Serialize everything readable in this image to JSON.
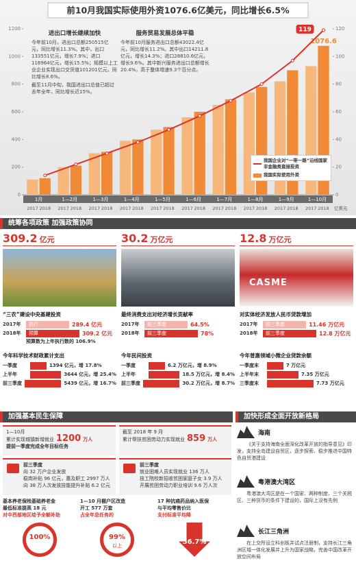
{
  "chart_data": {
    "type": "bar",
    "title": "前10月我国实际使用外资1076.6亿美元，同比增长6.5%",
    "categories": [
      "1月",
      "1—2月",
      "1—3月",
      "1—4月",
      "1—5月",
      "1—6月",
      "1—7月",
      "1—8月",
      "1—9月",
      "1—10月"
    ],
    "series": [
      {
        "name": "2017",
        "color": "#f7b77a",
        "values": [
          110,
          200,
          300,
          390,
          470,
          560,
          650,
          740,
          820,
          930
        ]
      },
      {
        "name": "2018",
        "color": "#f08a36",
        "values": [
          120,
          210,
          310,
          400,
          490,
          600,
          690,
          780,
          900,
          1076.6
        ]
      },
      {
        "name": "我国企业对“一带一路”沿线国家非金融类直接投资",
        "color": "#d9342b",
        "axis": "y2",
        "type": "line",
        "values": [
          14,
          22,
          30,
          38,
          47,
          57,
          68,
          80,
          97,
          119
        ]
      }
    ],
    "bar_legend": "我国实际使用外资",
    "unit": "亿美元",
    "ylim": [
      0,
      1200
    ],
    "yticks": [
      0,
      200,
      400,
      600,
      800,
      1000,
      1200
    ],
    "y2lim": [
      0,
      120
    ],
    "y2ticks": [
      0,
      20,
      40,
      60,
      80,
      100,
      120
    ],
    "grid": false,
    "notes": [
      {
        "title": "进出口增长继续加快",
        "text": "今年前10月，进出口总额250515亿元，同比增长11.3%。其中，出口133551亿元，增长7.9%；进口116964亿元，增长15.5%；规模以上工业企业实现出口交货值101201亿元，同比增长8.6%。",
        "text2": "截至11月中旬，我国进出口总值已超过去年全年，同比增长近15%。"
      },
      {
        "title": "服务贸易发展总体平稳",
        "text": "今年前10月服务进出口总额43022.4亿元，同比增长11.2%。其中出口14211.8亿元，增长14.3%；进口28810.6亿元，增长9.6%。其中新兴服务进出口总额增长20.4%，高于整体增速9.3个百分点。",
        "text2": ""
      }
    ]
  },
  "policy": {
    "header": "统筹各项政策  加强政策协同",
    "columns": [
      {
        "number": "309.2",
        "unit": "亿元",
        "t1": "“三农”建设中央基建投资",
        "r1": [
          {
            "label": "2017年",
            "tag": "执行",
            "value": "289.4 亿元"
          },
          {
            "label": "2018年",
            "tag": "预算",
            "value": "309.2 亿元"
          }
        ],
        "note": "预算数为上年执行数的 106.9%",
        "t2": "今年科学技术财政累计支出",
        "r2": [
          {
            "label": "一季度",
            "value": "1394 亿元，增 17.8%"
          },
          {
            "label": "上半年",
            "value": "3644 亿元，增 25.4%"
          },
          {
            "label": "前三季度",
            "value": "5439 亿元，增 16.7%"
          }
        ]
      },
      {
        "number": "30.2",
        "unit": "万亿元",
        "t1": "最终消费支出对经济增长贡献率",
        "r1": [
          {
            "label": "2017年",
            "tag": "前三季度",
            "value": "64.5%"
          },
          {
            "label": "2018年",
            "tag": "前三季度",
            "value": "78%"
          }
        ],
        "note": "",
        "t2": "今年民间投资",
        "r2": [
          {
            "label": "一季度",
            "value": "6.2 万亿元，增 8.9%"
          },
          {
            "label": "上半年",
            "value": "18.5 万亿元，增 8.4%"
          },
          {
            "label": "前三季度",
            "value": "30.2 万亿元，增 8.7%"
          }
        ]
      },
      {
        "number": "12.8",
        "unit": "万亿元",
        "sign": "CASME",
        "t1": "对实体经济发放人民币贷款增加",
        "r1": [
          {
            "label": "2017年",
            "tag": "前三季度",
            "value": "11.46 万亿元"
          },
          {
            "label": "2018年",
            "tag": "前三季度",
            "value": "12.8 万亿元"
          }
        ],
        "note": "",
        "t2": "今年普惠领域小微企业贷款余额",
        "r2": [
          {
            "label": "一季度末",
            "value": "7 万亿元"
          },
          {
            "label": "上半年末",
            "value": "7.35 万亿元"
          },
          {
            "label": "三季度末",
            "value": "7.73 万亿元"
          }
        ]
      }
    ]
  },
  "livelihood": {
    "header": "加强基本民生保障",
    "a": {
      "l1": "1—10月",
      "l2": "累计实现城镇新增就业",
      "num": "1200",
      "unit": "万人",
      "l3": "提前一季度完成全年目标任务"
    },
    "b": {
      "l1": "截至 2018 年 9 月",
      "l2": "累计帮扶贫困劳动力实现就业",
      "num": "859",
      "unit": "万人"
    },
    "c": {
      "t": "前三季度",
      "lines": [
        "向 32 万户企业发放",
        "稳岗补贴 96 亿元，惠及职工 2997 万人",
        "向 38 万人次发放技能提升补贴 6.2 亿元"
      ]
    },
    "d": {
      "t": "前三季度",
      "lines": [
        "就业困难人员实现就业 136 万人",
        "技工院校新招收贫困家庭子女 3.9 万人",
        "开展贫困劳动力职业培训 9.6 万人次"
      ]
    },
    "e": {
      "l1": "基本养老保险基础养老金",
      "l2": "最低标准提高 18 元",
      "l3": "对中西部地区给予全额补助",
      "num": "100%"
    },
    "f": {
      "l1": "1—10 月棚户区改造",
      "l2": "开工 577 万套",
      "l3": "占全年总任务的",
      "num": "99%",
      "num2": "以上"
    },
    "g": {
      "l1": "17 种抗癌药品纳入医保",
      "l2": "与平均零售价比",
      "l3": "支付标准平均降",
      "num": "56.7%"
    }
  },
  "opening": {
    "header": "加快形成全面开放新格局",
    "regions": [
      {
        "name": "海南",
        "text": "《关于支持海南全面深化改革开放的指导意见》印发，支持全岛建设自贸区，逐步探索、稳步推进中国特色自贸港建设"
      },
      {
        "name": "粤港澳大湾区",
        "text": "粤港澳大湾区是在一个国家、两种制度、三个关税区、三种货币的条件下建设的，国际上没有先例"
      },
      {
        "name": "长江三角洲",
        "text": "在上交所设立科创板并试点注册制，支持长江三角洲区域一体化发展并上升为国家战略，完善中国改革开放空间布局"
      }
    ]
  }
}
